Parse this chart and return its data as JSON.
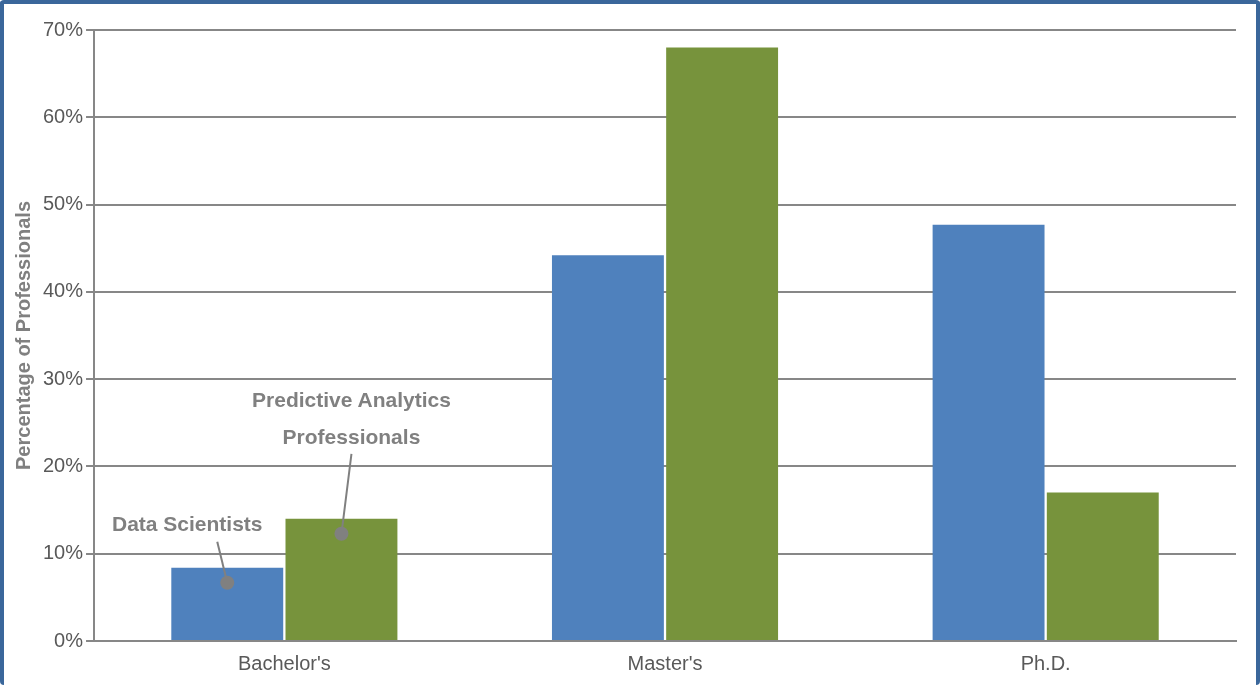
{
  "chart_data": {
    "type": "bar",
    "ylabel": "Percentage of Professionals",
    "categories": [
      "Bachelor's",
      "Master's",
      "Ph.D."
    ],
    "series": [
      {
        "name": "Data Scientists",
        "color": "#4f81bd",
        "values": [
          8.4,
          44.2,
          47.7
        ]
      },
      {
        "name": "Predictive Analytics Professionals",
        "color": "#77933c",
        "values": [
          14.0,
          68.0,
          17.0
        ]
      }
    ],
    "ylim": [
      0,
      70
    ],
    "yticks": [
      {
        "value": 0,
        "label": "0%"
      },
      {
        "value": 10,
        "label": "10%"
      },
      {
        "value": 20,
        "label": "20%"
      },
      {
        "value": 30,
        "label": "30%"
      },
      {
        "value": 40,
        "label": "40%"
      },
      {
        "value": 50,
        "label": "50%"
      },
      {
        "value": 60,
        "label": "60%"
      },
      {
        "value": 70,
        "label": "70%"
      }
    ],
    "grid": "y",
    "legend": false
  }
}
